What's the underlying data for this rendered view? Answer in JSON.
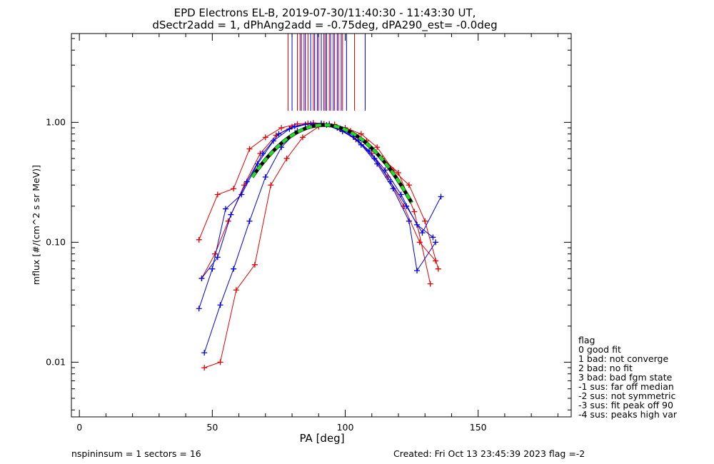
{
  "chart_data": {
    "type": "line",
    "title": "EPD Electrons EL-B, 2019-07-30/11:40:30 - 11:43:30 UT,",
    "subtitle": "dSectr2add = 1, dPhAng2add = -0.75deg, dPA290_est=  -0.0deg",
    "xlabel": "PA [deg]",
    "ylabel": "mflux [#/(cm^2 s sr MeV)]",
    "xlim": [
      -3,
      185
    ],
    "ylim": [
      0.0035,
      5.5
    ],
    "yscale": "log",
    "x_ticks": [
      0,
      50,
      100,
      150
    ],
    "y_ticks": [
      0.01,
      0.1,
      1.0
    ],
    "y_tick_labels": [
      "0.01",
      "0.10",
      "1.00"
    ],
    "series": [
      {
        "color": "#e00000",
        "style": "lines+plus",
        "x": [
          45,
          52,
          58,
          64,
          70,
          76,
          82,
          88,
          94,
          100,
          106,
          112,
          118,
          124,
          130,
          135
        ],
        "y": [
          0.105,
          0.25,
          0.28,
          0.6,
          0.75,
          0.9,
          0.97,
          0.99,
          0.97,
          0.9,
          0.8,
          0.62,
          0.4,
          0.3,
          0.15,
          0.06
        ]
      },
      {
        "color": "#e00000",
        "style": "lines+plus",
        "x": [
          47,
          53,
          59,
          66,
          72,
          78,
          84,
          90,
          96,
          102,
          108,
          114,
          120,
          126,
          132
        ],
        "y": [
          0.009,
          0.01,
          0.04,
          0.065,
          0.3,
          0.5,
          0.75,
          0.92,
          0.96,
          0.85,
          0.7,
          0.5,
          0.38,
          0.18,
          0.045
        ]
      },
      {
        "color": "#e00000",
        "style": "lines+plus",
        "x": [
          46,
          51,
          56,
          62,
          68,
          74,
          80,
          86,
          92,
          98,
          104,
          110,
          116,
          122,
          128,
          134
        ],
        "y": [
          0.05,
          0.08,
          0.15,
          0.3,
          0.55,
          0.78,
          0.92,
          0.98,
          0.97,
          0.88,
          0.72,
          0.55,
          0.35,
          0.2,
          0.1,
          0.07
        ]
      },
      {
        "color": "#0000e0",
        "style": "lines+plus",
        "x": [
          46,
          52,
          57,
          63,
          69,
          75,
          81,
          87,
          93,
          99,
          105,
          111,
          117,
          123,
          129,
          136
        ],
        "y": [
          0.05,
          0.075,
          0.17,
          0.32,
          0.55,
          0.8,
          0.93,
          0.97,
          0.95,
          0.84,
          0.7,
          0.5,
          0.32,
          0.2,
          0.12,
          0.24
        ]
      },
      {
        "color": "#0000e0",
        "style": "lines+plus",
        "x": [
          47,
          53,
          58,
          64,
          70,
          76,
          82,
          88,
          94,
          100,
          106,
          112,
          118,
          124,
          127,
          134
        ],
        "y": [
          0.012,
          0.03,
          0.06,
          0.15,
          0.35,
          0.62,
          0.85,
          0.95,
          0.96,
          0.86,
          0.65,
          0.45,
          0.28,
          0.15,
          0.058,
          0.1
        ]
      },
      {
        "color": "#0000e0",
        "style": "lines+plus",
        "x": [
          45,
          50,
          55,
          61,
          67,
          73,
          79,
          85,
          91,
          97,
          103,
          109,
          115,
          121,
          127,
          133
        ],
        "y": [
          0.028,
          0.06,
          0.19,
          0.25,
          0.45,
          0.7,
          0.88,
          0.96,
          0.98,
          0.9,
          0.76,
          0.58,
          0.4,
          0.25,
          0.14,
          0.11
        ]
      }
    ],
    "fit_curve": {
      "color": "#22dd22",
      "style": "dashed",
      "x_range": [
        65,
        125
      ],
      "peak_x": 92,
      "peak_y": 0.95
    },
    "vertical_markers": {
      "red_x": [
        78.5,
        82,
        83,
        84.5,
        86,
        88,
        90,
        92.5,
        94,
        96,
        97.5,
        99,
        103.5
      ],
      "blue_x": [
        80,
        83.5,
        85,
        87,
        88.5,
        89.5,
        91,
        92,
        93,
        94.5,
        95.5,
        97,
        98.5,
        100.5,
        107.5
      ]
    }
  },
  "legend": {
    "title": "flag",
    "items": [
      " 0 good fit",
      " 1 bad: not converge",
      " 2 bad: no fit",
      " 3 bad: bad fgm state",
      "-1 sus: far off median",
      "-2 sus: not symmetric",
      "-3 sus: fit peak off 90",
      "-4 sus: peaks high var"
    ]
  },
  "footer": {
    "left": "nspininsum =  1  sectors = 16",
    "right": "Created: Fri Oct 13 23:45:39 2023   flag =-2"
  }
}
